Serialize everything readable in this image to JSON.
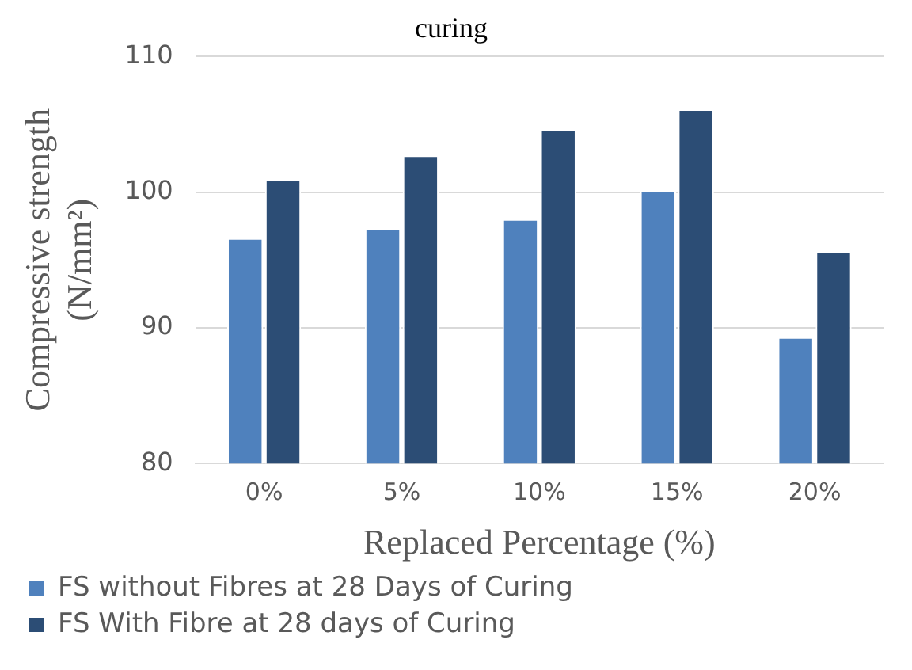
{
  "chart_data": {
    "type": "bar",
    "title": "curing",
    "xlabel": "Replaced Percentage (%)",
    "ylabel": "Compressive strength (N/mm²)",
    "categories": [
      "0%",
      "5%",
      "10%",
      "15%",
      "20%"
    ],
    "series": [
      {
        "name": "FS without Fibres at 28 Days of Curing",
        "color": "#4f81bd",
        "values": [
          96.6,
          97.3,
          98.0,
          100.1,
          89.3
        ]
      },
      {
        "name": "FS With Fibre at 28 days of Curing",
        "color": "#2c4d75",
        "values": [
          100.9,
          102.7,
          104.6,
          106.1,
          95.6
        ]
      }
    ],
    "ylim": [
      80,
      110
    ],
    "yticks": [
      80,
      90,
      100,
      110
    ],
    "grid": "y",
    "legend": "bottom"
  }
}
